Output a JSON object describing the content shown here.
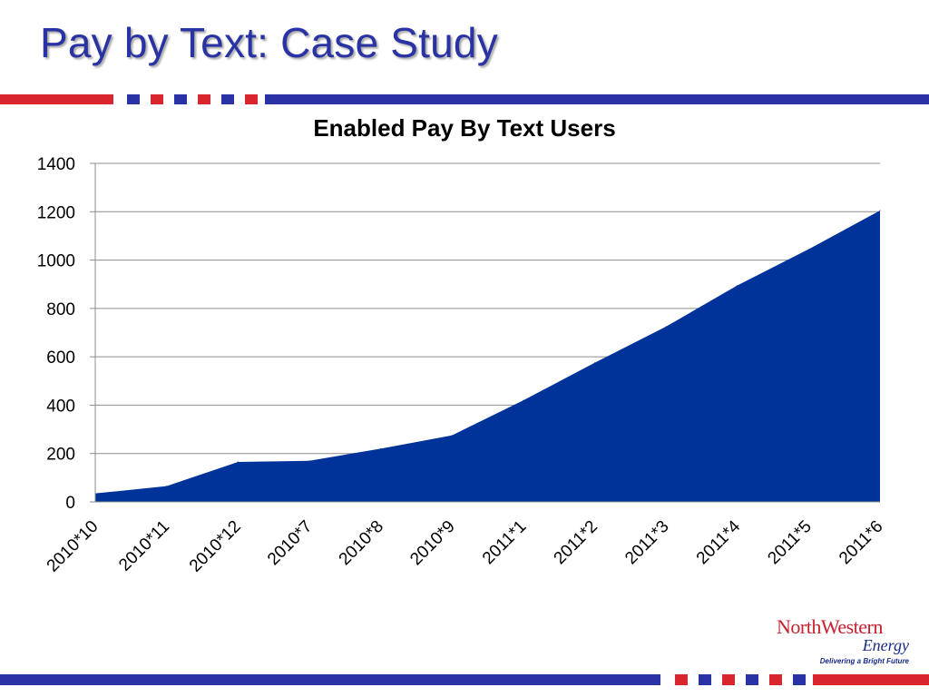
{
  "slide": {
    "title": "Pay by Text: Case Study",
    "brand_red": "#d9262e",
    "brand_blue": "#2a33a3"
  },
  "logo": {
    "word1": "North",
    "word2": "Western",
    "word3": "Energy",
    "tagline": "Delivering a Bright Future"
  },
  "chart_data": {
    "type": "area",
    "title": "Enabled Pay By Text Users",
    "categories": [
      "2010*10",
      "2010*11",
      "2010*12",
      "2010*7",
      "2010*8",
      "2010*9",
      "2011*1",
      "2011*2",
      "2011*3",
      "2011*4",
      "2011*5",
      "2011*6"
    ],
    "values": [
      35,
      65,
      165,
      170,
      220,
      275,
      420,
      575,
      725,
      895,
      1045,
      1205
    ],
    "ylim": [
      0,
      1400
    ],
    "yticks": [
      "0",
      "200",
      "400",
      "600",
      "800",
      "1000",
      "1200",
      "1400"
    ],
    "xlabel": "",
    "ylabel": "",
    "grid": true,
    "color": "#003399"
  }
}
